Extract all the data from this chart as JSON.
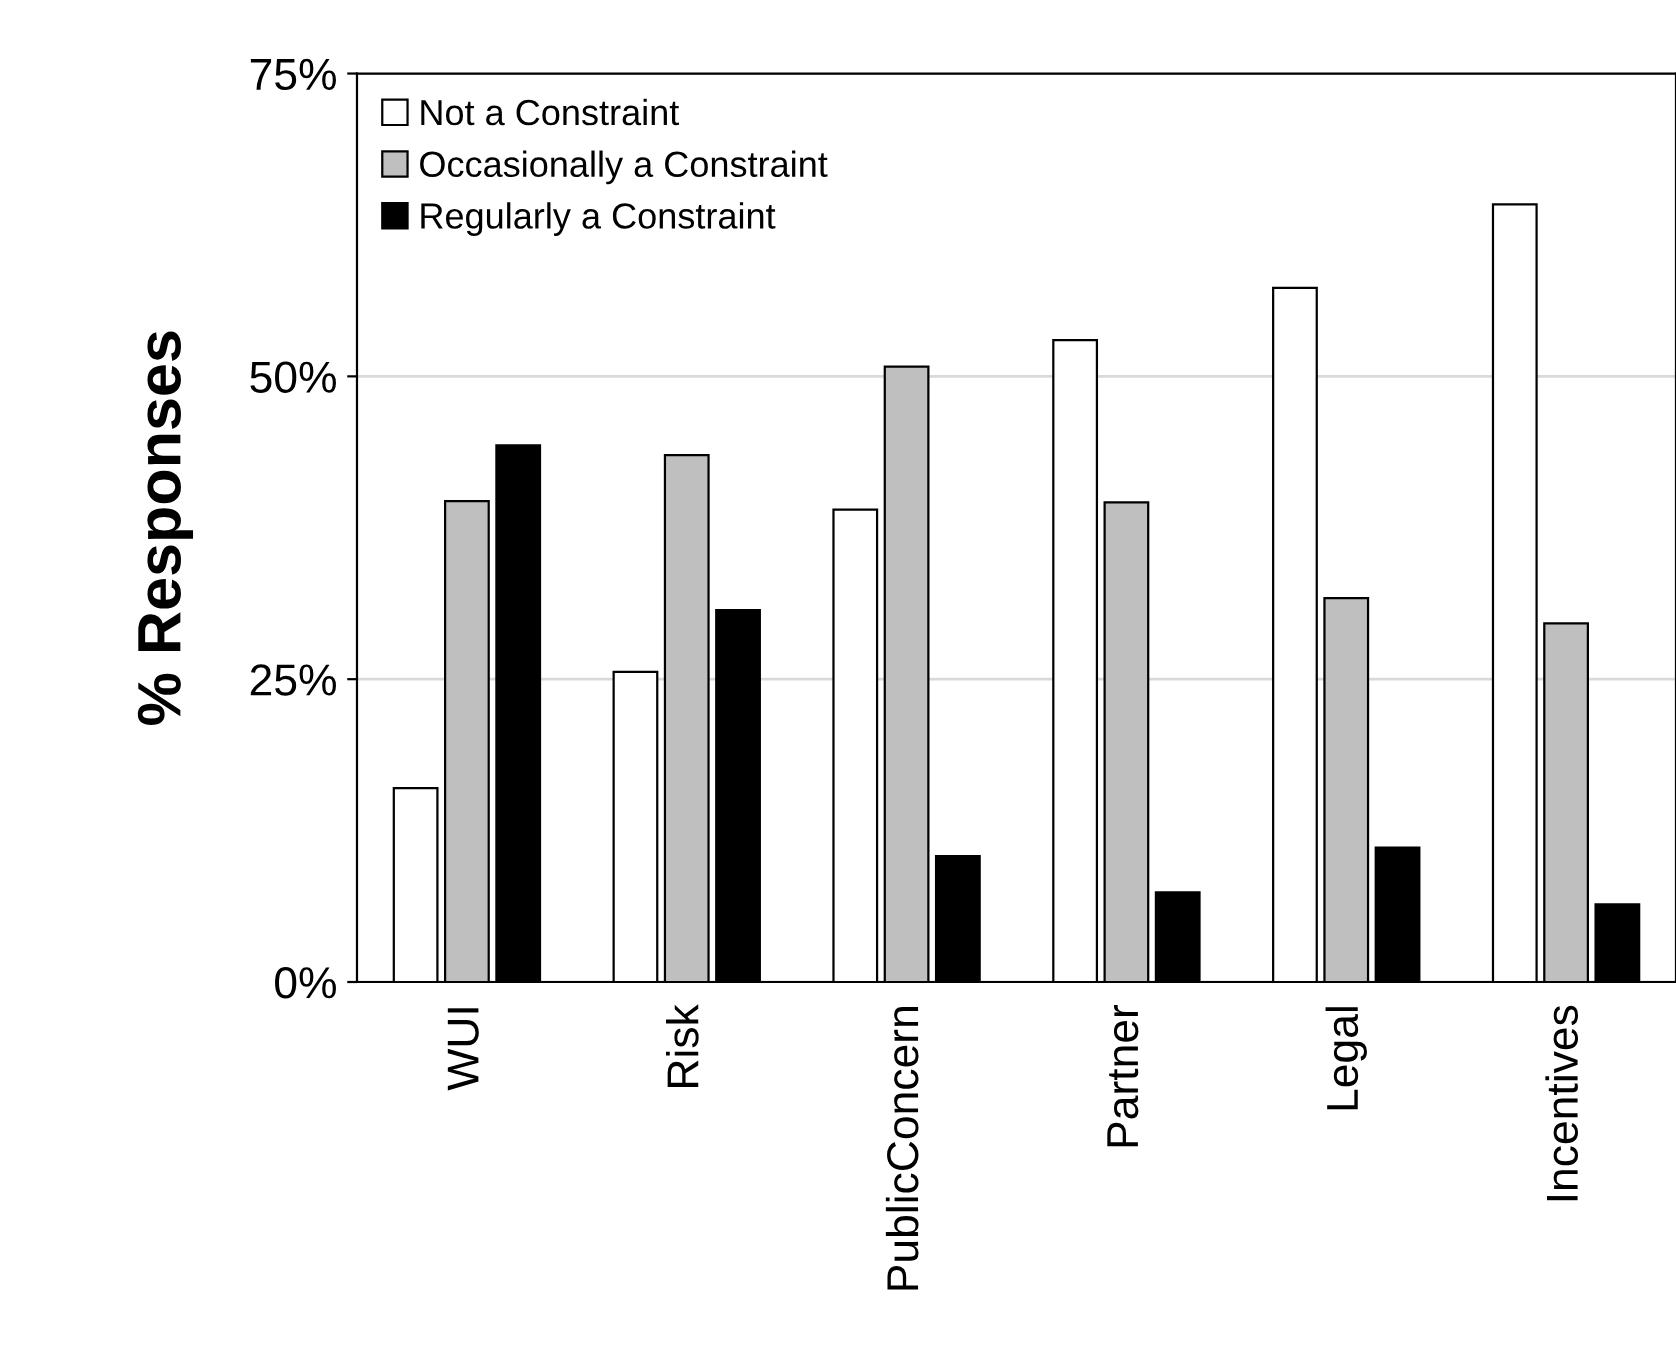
{
  "chart_data": {
    "type": "bar",
    "ylabel": "% Responses",
    "categories": [
      "WUI",
      "Risk",
      "PublicConcern",
      "Partner",
      "Legal",
      "Incentives"
    ],
    "series": [
      {
        "name": "Not a Constraint",
        "color": "#ffffff",
        "values": [
          16.0,
          25.6,
          39.0,
          53.0,
          57.3,
          64.2
        ]
      },
      {
        "name": "Occasionally a Constraint",
        "color": "#bfbfbf",
        "values": [
          39.7,
          43.5,
          50.8,
          39.6,
          31.7,
          29.6
        ]
      },
      {
        "name": "Regularly a Constraint",
        "color": "#000000",
        "values": [
          44.3,
          30.7,
          10.4,
          7.4,
          11.1,
          6.4
        ]
      }
    ],
    "ylim": [
      0,
      75
    ],
    "yticks": [
      {
        "value": 0,
        "label": "0%"
      },
      {
        "value": 25,
        "label": "25%"
      },
      {
        "value": 50,
        "label": "50%"
      },
      {
        "value": 75,
        "label": "75%"
      }
    ],
    "grid": "y",
    "legend": "top left"
  }
}
